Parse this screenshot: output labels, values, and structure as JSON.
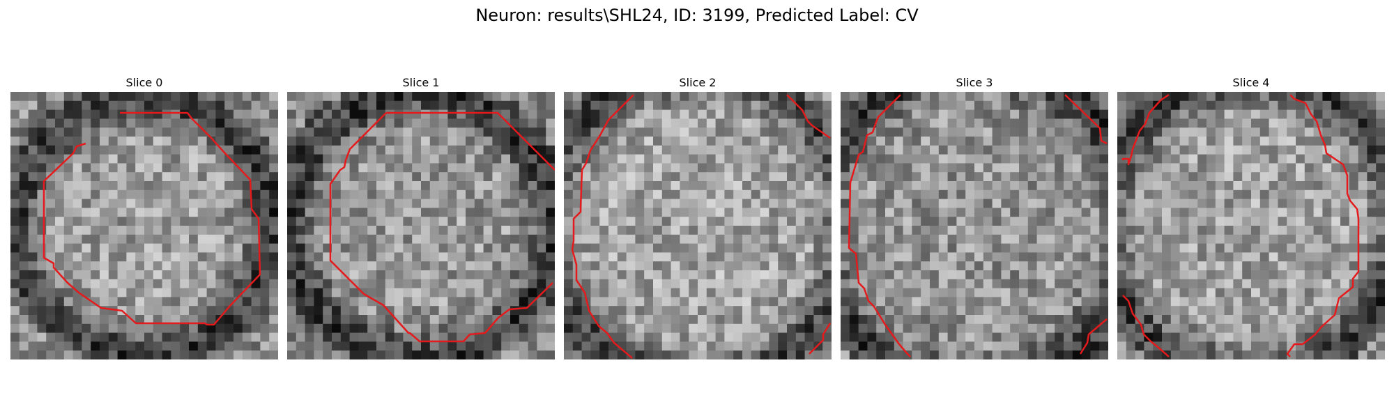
{
  "figure": {
    "title": "Neuron: results\\SHL24, ID: 3199, Predicted Label: CV"
  },
  "contour_color": "#e41a1c",
  "panels": [
    {
      "title": "Slice 0",
      "image": "grayscale-microscopy-slice",
      "seed": 11,
      "center_bright": 0.62,
      "ring_radius": 0.48
    },
    {
      "title": "Slice 1",
      "image": "grayscale-microscopy-slice",
      "seed": 23,
      "center_bright": 0.6,
      "ring_radius": 0.5
    },
    {
      "title": "Slice 2",
      "image": "grayscale-microscopy-slice",
      "seed": 37,
      "center_bright": 0.64,
      "ring_radius": 0.58
    },
    {
      "title": "Slice 3",
      "image": "grayscale-microscopy-slice",
      "seed": 41,
      "center_bright": 0.58,
      "ring_radius": 0.6
    },
    {
      "title": "Slice 4",
      "image": "grayscale-microscopy-slice",
      "seed": 53,
      "center_bright": 0.63,
      "ring_radius": 0.56
    }
  ]
}
